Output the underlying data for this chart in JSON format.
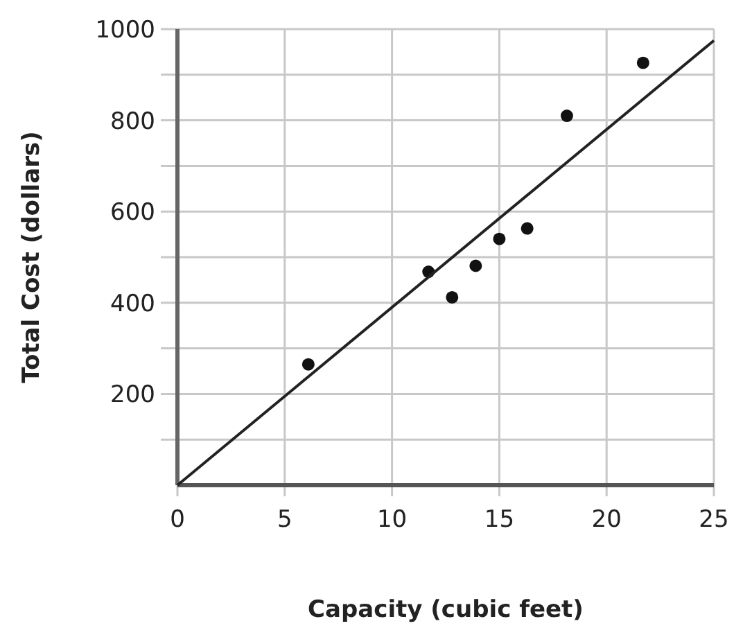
{
  "chart_data": {
    "type": "scatter",
    "xlabel": "Capacity (cubic feet)",
    "ylabel": "Total Cost (dollars)",
    "xlim": [
      0,
      25
    ],
    "ylim": [
      0,
      1000
    ],
    "xticks": [
      0,
      5,
      10,
      15,
      20,
      25
    ],
    "yticks": [
      {
        "value": 100,
        "label": null
      },
      200,
      {
        "value": 300,
        "label": null
      },
      400,
      {
        "value": 500,
        "label": null
      },
      600,
      {
        "value": 700,
        "label": null
      },
      800,
      {
        "value": 900,
        "label": null
      },
      1000
    ],
    "grid": true,
    "marker": "circle",
    "series": [
      {
        "color": "#111111",
        "x": [
          6.1,
          11.7,
          12.8,
          13.9,
          15.0,
          16.3,
          18.15,
          21.7
        ],
        "values": [
          265,
          468,
          412,
          481,
          540,
          563,
          810,
          926
        ]
      },
      {
        "type": "line",
        "color": "#222222",
        "x": [
          0,
          25
        ],
        "values": [
          0,
          975
        ],
        "marker": "none"
      }
    ]
  }
}
